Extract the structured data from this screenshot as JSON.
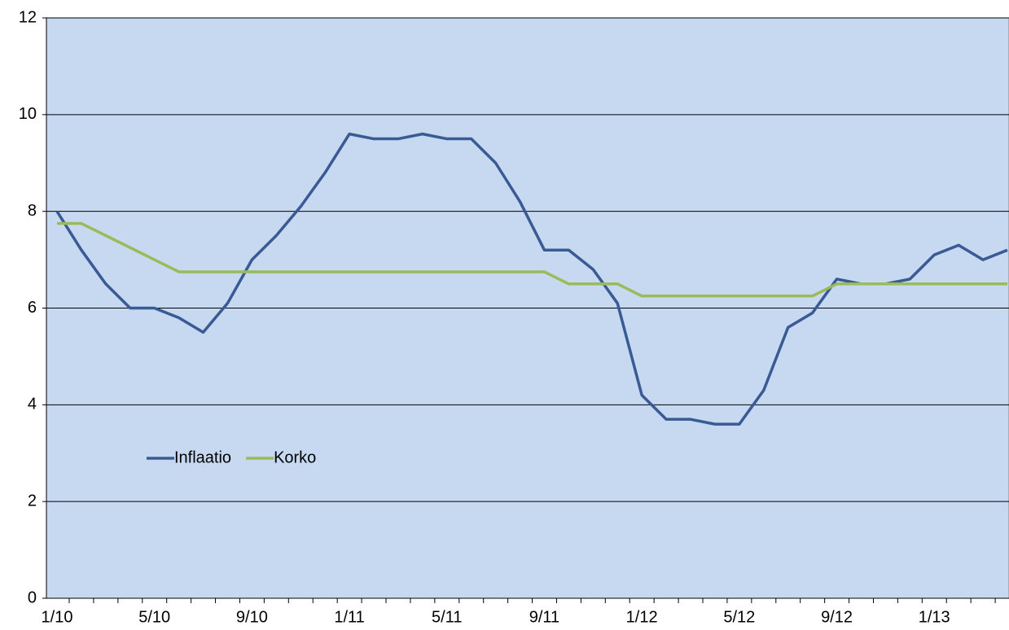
{
  "chart_data": {
    "type": "line",
    "categories": [
      "1/10",
      null,
      null,
      null,
      "5/10",
      null,
      null,
      null,
      "9/10",
      null,
      null,
      null,
      "1/11",
      null,
      null,
      null,
      "5/11",
      null,
      null,
      null,
      "9/11",
      null,
      null,
      null,
      "1/12",
      null,
      null,
      null,
      "5/12",
      null,
      null,
      null,
      "9/12",
      null,
      null,
      null,
      "1/13",
      null,
      null,
      null
    ],
    "series": [
      {
        "name": "Inflaatio",
        "color": "#3a5a94",
        "values": [
          8.0,
          7.2,
          6.5,
          6.0,
          6.0,
          5.8,
          5.5,
          6.1,
          7.0,
          7.5,
          8.1,
          8.8,
          9.6,
          9.5,
          9.5,
          9.6,
          9.5,
          9.5,
          9.0,
          8.2,
          7.2,
          7.2,
          6.8,
          6.1,
          4.2,
          3.7,
          3.7,
          3.6,
          3.6,
          4.3,
          5.6,
          5.9,
          6.6,
          6.5,
          6.5,
          6.6,
          7.1,
          7.3,
          7.0,
          7.2
        ]
      },
      {
        "name": "Korko",
        "color": "#9bbb59",
        "values": [
          7.75,
          7.75,
          7.5,
          7.25,
          7.0,
          6.75,
          6.75,
          6.75,
          6.75,
          6.75,
          6.75,
          6.75,
          6.75,
          6.75,
          6.75,
          6.75,
          6.75,
          6.75,
          6.75,
          6.75,
          6.75,
          6.5,
          6.5,
          6.5,
          6.25,
          6.25,
          6.25,
          6.25,
          6.25,
          6.25,
          6.25,
          6.25,
          6.5,
          6.5,
          6.5,
          6.5,
          6.5,
          6.5,
          6.5,
          6.5
        ]
      }
    ],
    "ylim": [
      0,
      12
    ],
    "yticks": [
      0,
      2,
      4,
      6,
      8,
      10,
      12
    ],
    "grid": true,
    "legend": "left",
    "background": "#c6d9f1"
  }
}
